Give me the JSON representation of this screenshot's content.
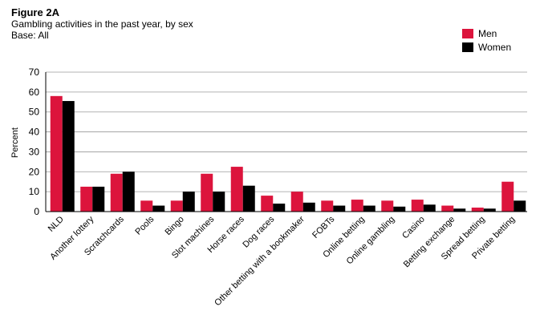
{
  "figure": {
    "label": "Figure 2A",
    "subtitle": "Gambling activities in the past year, by sex",
    "base": "Base: All"
  },
  "colors": {
    "men": "#dc143c",
    "women": "#000000"
  },
  "chart_data": {
    "type": "bar",
    "ylabel": "Percent",
    "xlabel": "",
    "ylim": [
      0,
      70
    ],
    "yticks": [
      0,
      10,
      20,
      30,
      40,
      50,
      60,
      70
    ],
    "grid": "horizontal",
    "legend_position": "top-right",
    "categories": [
      "NLD",
      "Another lottery",
      "Scratchcards",
      "Pools",
      "Bingo",
      "Slot machines",
      "Horse races",
      "Dog races",
      "Other betting with a bookmaker",
      "FOBTs",
      "Online betting",
      "Online gambling",
      "Casino",
      "Betting exchange",
      "Spread betting",
      "Private betting"
    ],
    "series": [
      {
        "name": "Men",
        "values": [
          58,
          12.5,
          19,
          5.5,
          5.5,
          19,
          22.5,
          8,
          10,
          5.5,
          6,
          5.5,
          6,
          3,
          2,
          15
        ]
      },
      {
        "name": "Women",
        "values": [
          55.5,
          12.5,
          20,
          3,
          10,
          10,
          13,
          4,
          4.5,
          3,
          3,
          2.5,
          3.5,
          1.5,
          1.5,
          5.5
        ]
      }
    ]
  }
}
